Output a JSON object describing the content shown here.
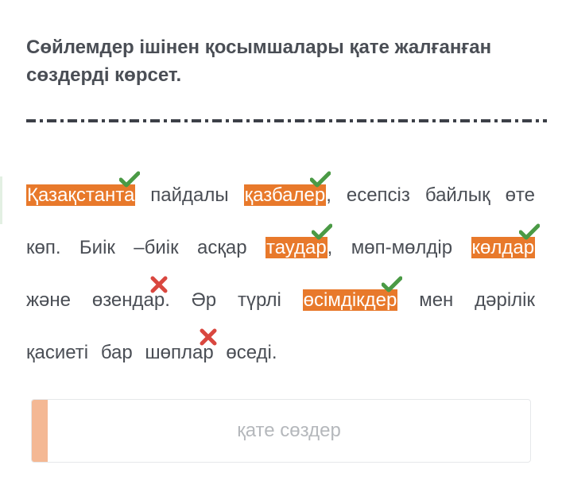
{
  "question": {
    "title": "Сөйлемдер ішінен қосымшалары қате жалғанған сөздерді көрсет."
  },
  "passage": {
    "tokens": [
      {
        "text": "Қазақстанта",
        "highlighted": true,
        "mark": "correct"
      },
      {
        "text": "пайдалы",
        "highlighted": false,
        "mark": null
      },
      {
        "text": "қазбалер",
        "highlighted": true,
        "mark": "correct"
      },
      {
        "text": ",",
        "highlighted": false,
        "mark": null,
        "attach": true
      },
      {
        "text": "есепсіз",
        "highlighted": false,
        "mark": null
      },
      {
        "text": "байлық",
        "highlighted": false,
        "mark": null
      },
      {
        "text": "өте",
        "highlighted": false,
        "mark": null
      },
      {
        "text": "көп.",
        "highlighted": false,
        "mark": null
      },
      {
        "text": "Биік",
        "highlighted": false,
        "mark": null
      },
      {
        "text": "–биік",
        "highlighted": false,
        "mark": null
      },
      {
        "text": "асқар",
        "highlighted": false,
        "mark": null
      },
      {
        "text": "таудар",
        "highlighted": true,
        "mark": "correct"
      },
      {
        "text": ",",
        "highlighted": false,
        "mark": null,
        "attach": true
      },
      {
        "text": "мөп-мөлдір",
        "highlighted": false,
        "mark": null
      },
      {
        "text": "көлдар",
        "highlighted": true,
        "mark": "correct"
      },
      {
        "text": "және",
        "highlighted": false,
        "mark": null
      },
      {
        "text": "өзендар",
        "highlighted": false,
        "mark": "missed"
      },
      {
        "text": ".",
        "highlighted": false,
        "mark": null,
        "attach": true
      },
      {
        "text": "Әр",
        "highlighted": false,
        "mark": null
      },
      {
        "text": "түрлі",
        "highlighted": false,
        "mark": null
      },
      {
        "text": "өсімдікдер",
        "highlighted": true,
        "mark": "correct"
      },
      {
        "text": "мен",
        "highlighted": false,
        "mark": null
      },
      {
        "text": "дәрілік",
        "highlighted": false,
        "mark": null
      },
      {
        "text": "қасиеті",
        "highlighted": false,
        "mark": null
      },
      {
        "text": "бар",
        "highlighted": false,
        "mark": null
      },
      {
        "text": "шөплар",
        "highlighted": false,
        "mark": "missed"
      },
      {
        "text": "өседі.",
        "highlighted": false,
        "mark": null
      }
    ]
  },
  "answer_box": {
    "placeholder": "қате сөздер"
  },
  "colors": {
    "highlight": "#e8792b",
    "check": "#4a9a45",
    "cross": "#d9473f",
    "accent_strip": "#f4b894",
    "text": "#4a4e55"
  }
}
